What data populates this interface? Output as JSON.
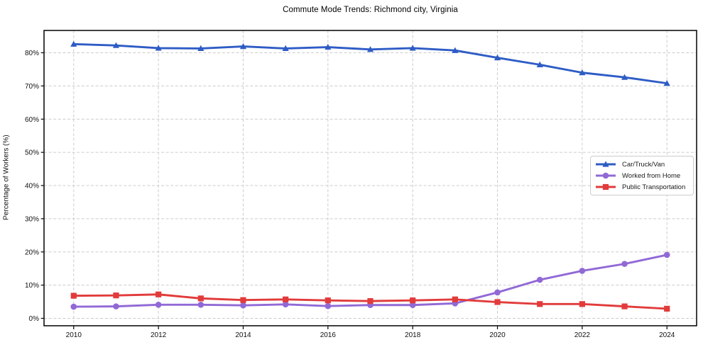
{
  "figure": {
    "title": "Commute Mode Trends: Richmond city, Virginia"
  },
  "chart_data": {
    "type": "line",
    "title": "Commute Mode Trends: Richmond city, Virginia",
    "xlabel": "",
    "ylabel": "Percentage of Workers (%)",
    "x": [
      2010,
      2011,
      2012,
      2013,
      2014,
      2015,
      2016,
      2017,
      2018,
      2019,
      2020,
      2021,
      2022,
      2023,
      2024
    ],
    "series": [
      {
        "name": "Car/Truck/Van",
        "marker": "triangle",
        "color": "#2e5cc5",
        "values": [
          82.6,
          82.2,
          81.4,
          81.3,
          81.9,
          81.3,
          81.7,
          81.0,
          81.4,
          80.7,
          78.5,
          76.4,
          74.0,
          72.6,
          70.8
        ]
      },
      {
        "name": "Worked from Home",
        "marker": "circle",
        "color": "#9169d6",
        "values": [
          3.5,
          3.6,
          4.1,
          4.1,
          3.9,
          4.2,
          3.7,
          4.0,
          4.0,
          4.5,
          7.8,
          11.6,
          14.3,
          16.4,
          19.1
        ]
      },
      {
        "name": "Public Transportation",
        "marker": "square",
        "color": "#e23b3b",
        "values": [
          6.8,
          6.9,
          7.2,
          6.0,
          5.5,
          5.7,
          5.4,
          5.2,
          5.4,
          5.7,
          4.9,
          4.3,
          4.3,
          3.6,
          2.9
        ]
      }
    ],
    "xticks": [
      2010,
      2012,
      2014,
      2016,
      2018,
      2020,
      2022,
      2024
    ],
    "yticks": [
      0,
      10,
      20,
      30,
      40,
      50,
      60,
      70,
      80
    ],
    "ytick_suffix": "%",
    "xlim": [
      2009.3,
      2024.7
    ],
    "ylim": [
      -2.24,
      86.72
    ],
    "grid": true,
    "grid_color": "#cccccc",
    "grid_style": "dashed",
    "axis_color": "#000000",
    "legend_position": "center-right",
    "legend_entries": [
      "Car/Truck/Van",
      "Worked from Home",
      "Public Transportation"
    ]
  }
}
